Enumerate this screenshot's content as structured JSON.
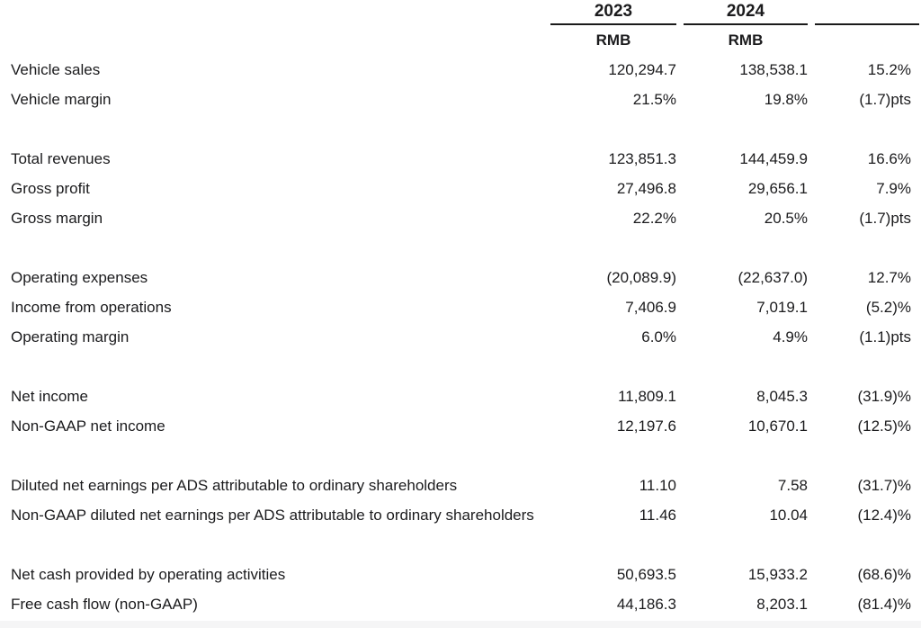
{
  "table": {
    "columns": [
      {
        "label": "2023",
        "unit": "RMB"
      },
      {
        "label": "2024",
        "unit": "RMB"
      },
      {
        "label": "",
        "unit": ""
      }
    ],
    "groups": [
      {
        "rows": [
          {
            "label": "Vehicle sales",
            "y2023": "120,294.7",
            "y2024": "138,538.1",
            "change": "15.2%"
          },
          {
            "label": "Vehicle margin",
            "y2023": "21.5%",
            "y2024": "19.8%",
            "change": "(1.7)pts"
          }
        ]
      },
      {
        "rows": [
          {
            "label": "Total revenues",
            "y2023": "123,851.3",
            "y2024": "144,459.9",
            "change": "16.6%"
          },
          {
            "label": "Gross profit",
            "y2023": "27,496.8",
            "y2024": "29,656.1",
            "change": "7.9%"
          },
          {
            "label": "Gross margin",
            "y2023": "22.2%",
            "y2024": "20.5%",
            "change": "(1.7)pts"
          }
        ]
      },
      {
        "rows": [
          {
            "label": "Operating expenses",
            "y2023": "(20,089.9)",
            "y2024": "(22,637.0)",
            "change": "12.7%"
          },
          {
            "label": "Income from operations",
            "y2023": "7,406.9",
            "y2024": "7,019.1",
            "change": "(5.2)%"
          },
          {
            "label": "Operating margin",
            "y2023": "6.0%",
            "y2024": "4.9%",
            "change": "(1.1)pts"
          }
        ]
      },
      {
        "rows": [
          {
            "label": "Net income",
            "y2023": "11,809.1",
            "y2024": "8,045.3",
            "change": "(31.9)%"
          },
          {
            "label": "Non-GAAP net income",
            "y2023": "12,197.6",
            "y2024": "10,670.1",
            "change": "(12.5)%"
          }
        ]
      },
      {
        "rows": [
          {
            "label": "Diluted net earnings per ADS attributable to ordinary shareholders",
            "y2023": "11.10",
            "y2024": "7.58",
            "change": "(31.7)%"
          },
          {
            "label": "Non-GAAP diluted net earnings per ADS attributable to ordinary shareholders",
            "y2023": "11.46",
            "y2024": "10.04",
            "change": "(12.4)%"
          }
        ]
      },
      {
        "rows": [
          {
            "label": "Net cash provided by operating activities",
            "y2023": "50,693.5",
            "y2024": "15,933.2",
            "change": "(68.6)%"
          },
          {
            "label": "Free cash flow (non-GAAP)",
            "y2023": "44,186.3",
            "y2024": "8,203.1",
            "change": "(81.4)%"
          }
        ]
      }
    ]
  },
  "colors": {
    "text": "#1b1b1d",
    "rule": "#1a1a1a",
    "bottom_band": "#f5f5f6"
  }
}
